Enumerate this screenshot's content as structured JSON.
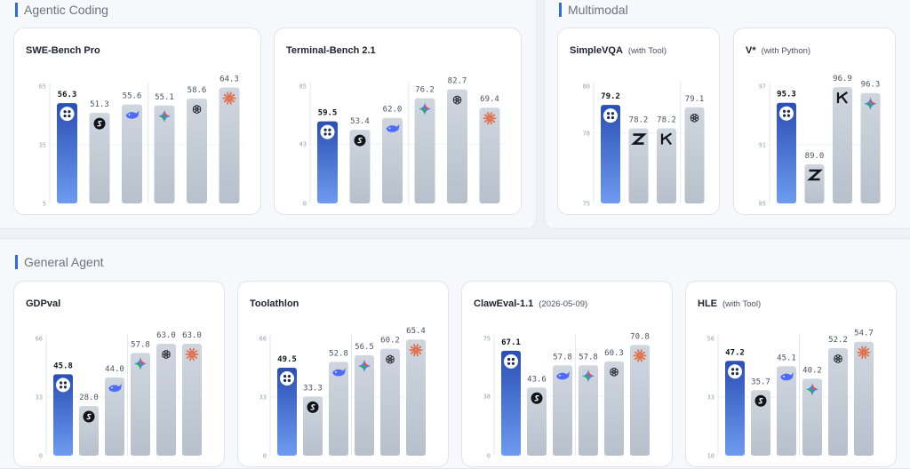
{
  "colors": {
    "primary_top": "#2a4fb5",
    "primary_bottom": "#6e9bf0",
    "other_top": "#cfd6df",
    "other_bottom": "#b7c0cb",
    "accent_rule": "#2d6cdf"
  },
  "sections": [
    {
      "id": "agentic",
      "title": "Agentic Coding"
    },
    {
      "id": "multimodal",
      "title": "Multimodal"
    },
    {
      "id": "general",
      "title": "General Agent"
    }
  ],
  "chart_data": [
    {
      "type": "bar",
      "section": "agentic",
      "title": "SWE-Bench Pro",
      "subtitle": "",
      "ylim": [
        5,
        65
      ],
      "yticks": [
        5,
        35,
        65
      ],
      "values": [
        56.3,
        51.3,
        55.6,
        55.1,
        58.6,
        64.3
      ],
      "icons": [
        "quad-dot-logo-icon",
        "s-circle-logo-icon",
        "whale-logo-icon",
        "gemini-sparkle-icon",
        "openai-knot-icon",
        "claude-burst-icon"
      ],
      "highlight": [
        true,
        false,
        false,
        false,
        false,
        false
      ],
      "separator_after": 2
    },
    {
      "type": "bar",
      "section": "agentic",
      "title": "Terminal-Bench 2.1",
      "subtitle": "",
      "ylim": [
        0,
        85
      ],
      "yticks": [
        0,
        43,
        85
      ],
      "values": [
        59.5,
        53.4,
        62.0,
        76.2,
        82.7,
        69.4
      ],
      "icons": [
        "quad-dot-logo-icon",
        "s-circle-logo-icon",
        "whale-logo-icon",
        "gemini-sparkle-icon",
        "openai-knot-icon",
        "claude-burst-icon"
      ],
      "highlight": [
        true,
        false,
        false,
        false,
        false,
        false
      ],
      "separator_after": 2
    },
    {
      "type": "bar",
      "section": "multimodal",
      "title": "SimpleVQA",
      "subtitle": "(with Tool)",
      "ylim": [
        75,
        80
      ],
      "yticks": [
        75,
        78,
        80
      ],
      "values": [
        79.2,
        78.2,
        78.2,
        79.1
      ],
      "icons": [
        "quad-dot-logo-icon",
        "z-logo-icon",
        "k-logo-icon",
        "openai-knot-icon"
      ],
      "highlight": [
        true,
        false,
        false,
        false
      ],
      "separator_after": 2
    },
    {
      "type": "bar",
      "section": "multimodal",
      "title": "V*",
      "subtitle": "(with Python)",
      "ylim": [
        85,
        97
      ],
      "yticks": [
        85,
        91,
        97
      ],
      "values": [
        95.3,
        89.0,
        96.9,
        96.3
      ],
      "icons": [
        "quad-dot-logo-icon",
        "z-logo-icon",
        "k-logo-icon",
        "gemini-sparkle-icon"
      ],
      "highlight": [
        true,
        false,
        false,
        false
      ],
      "separator_after": -1
    },
    {
      "type": "bar",
      "section": "general",
      "title": "GDPval",
      "subtitle": "",
      "ylim": [
        0,
        66
      ],
      "yticks": [
        0,
        33,
        66
      ],
      "values": [
        45.8,
        28.0,
        44.0,
        57.8,
        63.0,
        63.0
      ],
      "icons": [
        "quad-dot-logo-icon",
        "s-circle-logo-icon",
        "whale-logo-icon",
        "gemini-sparkle-icon",
        "openai-knot-icon",
        "claude-burst-icon"
      ],
      "highlight": [
        true,
        false,
        false,
        false,
        false,
        false
      ],
      "separator_after": 2
    },
    {
      "type": "bar",
      "section": "general",
      "title": "Toolathlon",
      "subtitle": "",
      "ylim": [
        0,
        66
      ],
      "yticks": [
        0,
        33,
        66
      ],
      "values": [
        49.5,
        33.3,
        52.8,
        56.5,
        60.2,
        65.4
      ],
      "icons": [
        "quad-dot-logo-icon",
        "s-circle-logo-icon",
        "whale-logo-icon",
        "gemini-sparkle-icon",
        "openai-knot-icon",
        "claude-burst-icon"
      ],
      "highlight": [
        true,
        false,
        false,
        false,
        false,
        false
      ],
      "separator_after": 2
    },
    {
      "type": "bar",
      "section": "general",
      "title": "ClawEval-1.1",
      "subtitle": "(2026-05-09)",
      "ylim": [
        0,
        75
      ],
      "yticks": [
        0,
        38,
        75
      ],
      "values": [
        67.1,
        43.6,
        57.8,
        57.8,
        60.3,
        70.8
      ],
      "icons": [
        "quad-dot-logo-icon",
        "s-circle-logo-icon",
        "whale-logo-icon",
        "gemini-sparkle-icon",
        "openai-knot-icon",
        "claude-burst-icon"
      ],
      "highlight": [
        true,
        false,
        false,
        false,
        false,
        false
      ],
      "separator_after": 2
    },
    {
      "type": "bar",
      "section": "general",
      "title": "HLE",
      "subtitle": "(with Tool)",
      "ylim": [
        10,
        56
      ],
      "yticks": [
        10,
        33,
        56
      ],
      "values": [
        47.2,
        35.7,
        45.1,
        40.2,
        52.2,
        54.7
      ],
      "icons": [
        "quad-dot-logo-icon",
        "s-circle-logo-icon",
        "whale-logo-icon",
        "gemini-sparkle-icon",
        "openai-knot-icon",
        "claude-burst-icon"
      ],
      "highlight": [
        true,
        false,
        false,
        false,
        false,
        false
      ],
      "separator_after": 2
    }
  ]
}
